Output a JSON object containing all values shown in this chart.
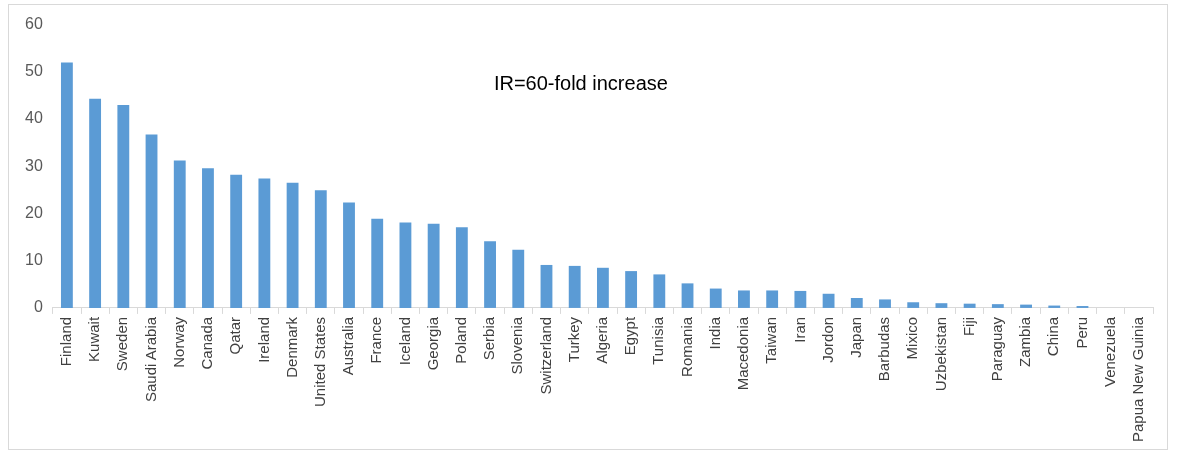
{
  "chart_data": {
    "type": "bar",
    "categories": [
      "Finland",
      "Kuwait",
      "Sweden",
      "Saudi Arabia",
      "Norway",
      "Canada",
      "Qatar",
      "Ireland",
      "Denmark",
      "United States",
      "Australia",
      "France",
      "Iceland",
      "Georgia",
      "Poland",
      "Serbia",
      "Slovenia",
      "Switzerland",
      "Turkey",
      "Algeria",
      "Egypt",
      "Tunisia",
      "Romania",
      "India",
      "Macedonia",
      "Taiwan",
      "Iran",
      "Jordon",
      "Japan",
      "Barbudas",
      "Mixico",
      "Uzbekistan",
      "Fiji",
      "Paraguay",
      "Zambia",
      "China",
      "Peru",
      "Venezuela",
      "Papua New Guinia"
    ],
    "values": [
      52,
      44.3,
      43,
      36.7,
      31.2,
      29.6,
      28.2,
      27.4,
      26.5,
      24.9,
      22.3,
      18.9,
      18.1,
      17.8,
      17.1,
      14.1,
      12.3,
      9.1,
      8.9,
      8.5,
      7.8,
      7.1,
      5.2,
      4.1,
      3.7,
      3.7,
      3.6,
      3.0,
      2.1,
      1.8,
      1.2,
      1.0,
      0.9,
      0.8,
      0.7,
      0.5,
      0.4,
      0,
      0
    ],
    "color": "#5b9bd5",
    "ylim": [
      0,
      60
    ],
    "yticks": [
      0,
      10,
      20,
      30,
      40,
      50,
      60
    ],
    "grid": false,
    "legend": false,
    "annotations": [
      "IR=60-fold increase"
    ]
  }
}
